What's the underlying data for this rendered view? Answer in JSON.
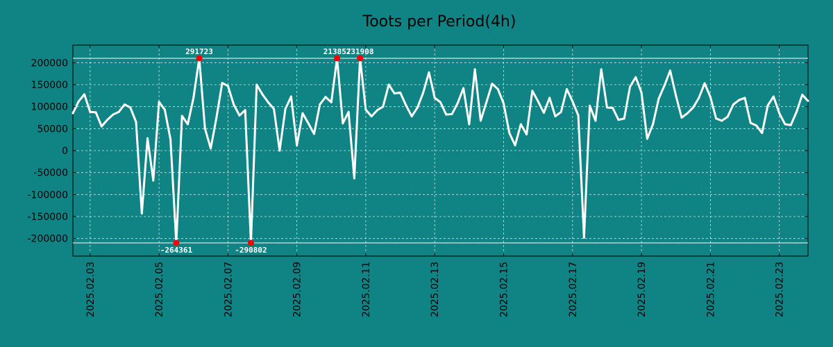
{
  "chart_data": {
    "type": "line",
    "title": "Toots per Period(4h)",
    "xlabel": "",
    "ylabel": "",
    "grid": true,
    "ylim": [
      -240000,
      240000
    ],
    "xlim": [
      0,
      128
    ],
    "y_ticks": [
      200000,
      150000,
      100000,
      50000,
      0,
      -50000,
      -100000,
      -150000,
      -200000
    ],
    "y_tick_labels": [
      "200000",
      "150000",
      "100000",
      "50000",
      "0",
      "-50000",
      "-100000",
      "-150000",
      "-200000"
    ],
    "x_ticks": [
      {
        "x": 3,
        "label": "2025.02.03"
      },
      {
        "x": 15,
        "label": "2025.02.05"
      },
      {
        "x": 27,
        "label": "2025.02.07"
      },
      {
        "x": 39,
        "label": "2025.02.09"
      },
      {
        "x": 51,
        "label": "2025.02.11"
      },
      {
        "x": 63,
        "label": "2025.02.13"
      },
      {
        "x": 75,
        "label": "2025.02.15"
      },
      {
        "x": 87,
        "label": "2025.02.17"
      },
      {
        "x": 99,
        "label": "2025.02.19"
      },
      {
        "x": 111,
        "label": "2025.02.21"
      },
      {
        "x": 123,
        "label": "2025.02.23"
      }
    ],
    "clip_upper": 210000,
    "clip_lower": -210000,
    "series": [
      {
        "name": "Toots",
        "color": "#ffffff",
        "values": [
          85000,
          112000,
          128000,
          88000,
          87000,
          55000,
          70000,
          82000,
          88000,
          105000,
          98000,
          65000,
          -143000,
          28000,
          -68000,
          111000,
          93000,
          25000,
          -210000,
          79000,
          60000,
          120000,
          210000,
          50000,
          5000,
          75000,
          154000,
          147000,
          105000,
          80000,
          92000,
          -210000,
          150000,
          128000,
          110000,
          95000,
          0,
          95000,
          123000,
          12000,
          85000,
          62000,
          38000,
          105000,
          122000,
          110000,
          210000,
          62000,
          88000,
          -63000,
          210000,
          93000,
          78000,
          92000,
          100000,
          150000,
          130000,
          132000,
          103000,
          78000,
          98000,
          132000,
          178000,
          120000,
          110000,
          82000,
          83000,
          108000,
          142000,
          60000,
          185000,
          68000,
          110000,
          152000,
          140000,
          107000,
          40000,
          12000,
          60000,
          37000,
          136000,
          112000,
          86000,
          120000,
          78000,
          88000,
          140000,
          112000,
          80000,
          -198000,
          102000,
          68000,
          185000,
          98000,
          97000,
          70000,
          73000,
          145000,
          167000,
          132000,
          27000,
          60000,
          118000,
          148000,
          182000,
          125000,
          75000,
          85000,
          98000,
          120000,
          153000,
          122000,
          73000,
          68000,
          77000,
          105000,
          115000,
          120000,
          63000,
          57000,
          40000,
          103000,
          123000,
          85000,
          60000,
          58000,
          88000,
          127000,
          113000
        ]
      }
    ],
    "annotations": [
      {
        "x": 18,
        "y": -210000,
        "label": "-264361",
        "position": "below"
      },
      {
        "x": 22,
        "y": 210000,
        "label": "291723",
        "position": "above"
      },
      {
        "x": 31,
        "y": -210000,
        "label": "-290802",
        "position": "below"
      },
      {
        "x": 46,
        "y": 210000,
        "label": "213857",
        "position": "above"
      },
      {
        "x": 50,
        "y": 210000,
        "label": "231908",
        "position": "above"
      }
    ],
    "marker_color": "#ff0000",
    "clip_line_color": "#ffffff"
  }
}
